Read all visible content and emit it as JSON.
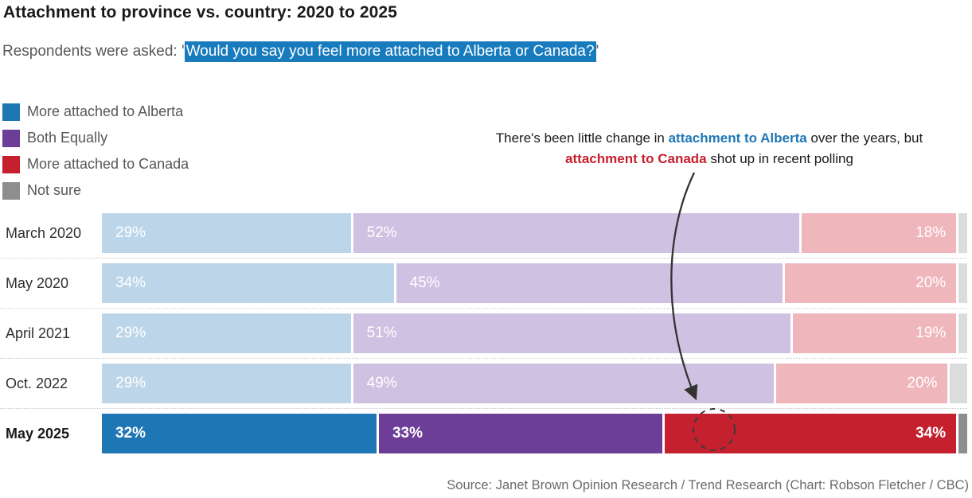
{
  "header": {
    "title": "Attachment to province vs. country: 2020 to 2025",
    "subtitle_prefix": "Respondents were asked: '",
    "subtitle_highlight": "Would you say you feel more attached to Alberta or Canada?",
    "subtitle_suffix": "'",
    "subtitle_highlight_bg": "#177bbe"
  },
  "legend": {
    "items": [
      {
        "label": "More attached to Alberta",
        "color": "#1e77b4"
      },
      {
        "label": "Both Equally",
        "color": "#6d3e98"
      },
      {
        "label": "More attached to Canada",
        "color": "#c4202e"
      },
      {
        "label": "Not sure",
        "color": "#8e8e8e"
      }
    ]
  },
  "annotation": {
    "parts": [
      {
        "text": "There's been little change in ",
        "style": "plain"
      },
      {
        "text": "attachment to Alberta",
        "style": "alberta"
      },
      {
        "text": " over the years, but ",
        "style": "plain"
      },
      {
        "text": "attachment to Canada",
        "style": "canada"
      },
      {
        "text": " shot up in recent polling",
        "style": "plain"
      }
    ],
    "alberta_color": "#1e77b4",
    "canada_color": "#c4202e"
  },
  "chart_data": {
    "type": "bar",
    "stacked": true,
    "orientation": "horizontal",
    "unit": "%",
    "title": "Attachment to province vs. country: 2020 to 2025",
    "categories": [
      "March 2020",
      "May 2020",
      "April 2021",
      "Oct. 2022",
      "May 2025"
    ],
    "series": [
      {
        "name": "More attached to Alberta",
        "values": [
          29,
          34,
          29,
          29,
          32
        ],
        "show_value_labels": true,
        "label_align": "left"
      },
      {
        "name": "Both Equally",
        "values": [
          52,
          45,
          51,
          49,
          33
        ],
        "show_value_labels": true,
        "label_align": "left"
      },
      {
        "name": "More attached to Canada",
        "values": [
          18,
          20,
          19,
          20,
          34
        ],
        "show_value_labels": true,
        "label_align": "right"
      },
      {
        "name": "Not sure",
        "values": [
          1,
          1,
          1,
          2,
          1
        ],
        "show_value_labels": false,
        "label_align": "none"
      }
    ],
    "colors_strong": [
      "#1e77b4",
      "#6d3e98",
      "#c4202e",
      "#8e8e8e"
    ],
    "colors_muted": [
      "#bcd5e9",
      "#cfc1e1",
      "#efb6bc",
      "#dcdcdc"
    ],
    "highlight_category": "May 2025",
    "xlim": [
      0,
      100
    ],
    "grid": false,
    "legend_position": "top-left"
  },
  "source": "Source: Janet Brown Opinion Research / Trend Research (Chart: Robson Fletcher / CBC)"
}
